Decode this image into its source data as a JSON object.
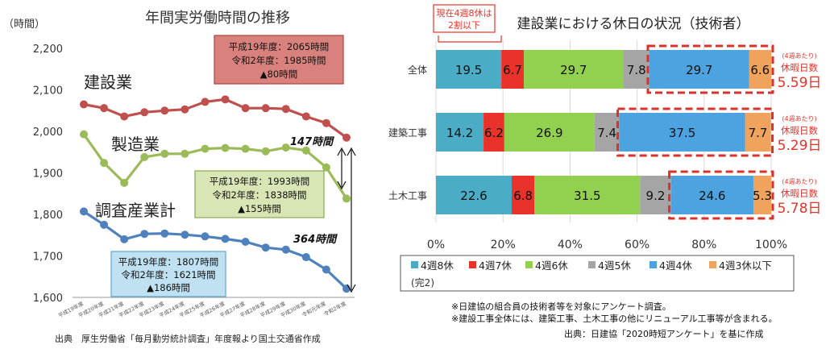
{
  "chart_data": [
    {
      "type": "line",
      "title": "年間実労働時間の推移",
      "ylabel": "（時間）",
      "ylim": [
        1600,
        2200
      ],
      "yticks": [
        1600,
        1700,
        1800,
        1900,
        2000,
        2100,
        2200
      ],
      "ytick_labels": [
        "1,600",
        "1,700",
        "1,800",
        "1,900",
        "2,000",
        "2,100",
        "2,200"
      ],
      "categories": [
        "平成19年度",
        "平成20年度",
        "平成21年度",
        "平成22年度",
        "平成23年度",
        "平成24年度",
        "平成25年度",
        "平成26年度",
        "平成27年度",
        "平成28年度",
        "平成29年度",
        "平成30年度",
        "令和元年度",
        "令和2年度"
      ],
      "series": [
        {
          "name": "建設業",
          "color": "#c0504d",
          "values": [
            2065,
            2056,
            2036,
            2046,
            2050,
            2053,
            2071,
            2077,
            2056,
            2056,
            2054,
            2036,
            2020,
            1985
          ]
        },
        {
          "name": "製造業",
          "color": "#9bbb59",
          "values": [
            1993,
            1924,
            1876,
            1938,
            1946,
            1946,
            1958,
            1960,
            1958,
            1952,
            1961,
            1954,
            1913,
            1838
          ]
        },
        {
          "name": "調査産業計",
          "color": "#4f81bd",
          "values": [
            1807,
            1775,
            1740,
            1753,
            1754,
            1751,
            1747,
            1741,
            1734,
            1720,
            1715,
            1697,
            1667,
            1621
          ]
        }
      ],
      "annotations": {
        "construction": {
          "line1": "平成19年度：2065時間",
          "line2": "令和2年度：1985時間",
          "line3": "▲80時間"
        },
        "manufacturing": {
          "line1": "平成19年度：1993時間",
          "line2": "令和2年度：1838時間",
          "line3": "▲155時間"
        },
        "all_industries": {
          "line1": "平成19年度：1807時間",
          "line2": "令和2年度：1621時間",
          "line3": "▲186時間"
        },
        "gap_147": "147時間",
        "gap_364": "364時間"
      },
      "source": "出典　厚生労働省「毎月勤労統計調査」年度報より国土交通省作成"
    },
    {
      "type": "bar",
      "orientation": "horizontal-stacked-percent",
      "title": "建設業における休日の状況（技術者）",
      "categories": [
        "全体",
        "建築工事",
        "土木工事"
      ],
      "xlim": [
        0,
        100
      ],
      "xticks": [
        0,
        20,
        40,
        60,
        80,
        100
      ],
      "xtick_labels": [
        "0%",
        "20%",
        "40%",
        "60%",
        "80%",
        "100%"
      ],
      "series": [
        {
          "name": "4週8休",
          "color": "#4bacc6",
          "values": [
            19.5,
            14.2,
            22.6
          ]
        },
        {
          "name": "4週7休",
          "color": "#e8322a",
          "values": [
            6.7,
            6.2,
            6.8
          ]
        },
        {
          "name": "4週6休",
          "color": "#92d050",
          "values": [
            29.7,
            26.9,
            31.5
          ]
        },
        {
          "name": "4週5休",
          "color": "#a5a5a5",
          "values": [
            7.8,
            7.4,
            9.2
          ]
        },
        {
          "name": "4週4休",
          "color": "#4da3e0",
          "values": [
            29.7,
            37.5,
            24.6
          ]
        },
        {
          "name": "4週3休以下",
          "color": "#f0a35c",
          "values": [
            6.6,
            7.7,
            5.3
          ]
        }
      ],
      "legend_extra": "(完2)",
      "callout": {
        "line1": "現在4週8休は",
        "line2": "2割以下"
      },
      "side_notes": [
        {
          "small": "(4週あたり)",
          "label": "休暇日数",
          "value": "5.59日"
        },
        {
          "small": "(4週あたり)",
          "label": "休暇日数",
          "value": "5.29日"
        },
        {
          "small": "(4週あたり)",
          "label": "休暇日数",
          "value": "5.78日"
        }
      ],
      "notes": [
        "※日建協の組合員の技術者等を対象にアンケート調査。",
        "※建設工事全体には、建築工事、土木工事の他にリニューアル工事等が含まれる。"
      ],
      "source": "出典：日建協「2020時短アンケート」を基に作成"
    }
  ]
}
